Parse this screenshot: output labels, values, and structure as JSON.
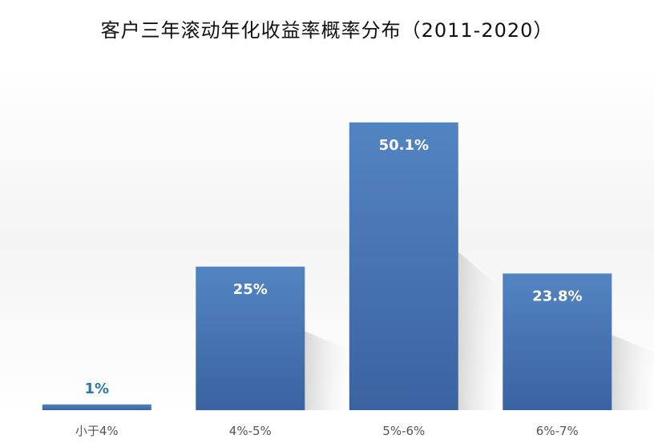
{
  "chart_data": {
    "type": "bar",
    "title": "客户三年滚动年化收益率概率分布（2011-2020）",
    "categories": [
      "小于4%",
      "4%-5%",
      "5%-6%",
      "6%-7%"
    ],
    "values": [
      1,
      25,
      50.1,
      23.8
    ],
    "data_labels": [
      "1%",
      "25%",
      "50.1%",
      "23.8%"
    ],
    "ylim": [
      0,
      60
    ],
    "grid": false,
    "legend": "none"
  },
  "colors": {
    "bar_top": "#5384c2",
    "bar_bottom": "#3a63a0",
    "label_inside": "#ffffff",
    "label_outside": "#2e75b6"
  }
}
